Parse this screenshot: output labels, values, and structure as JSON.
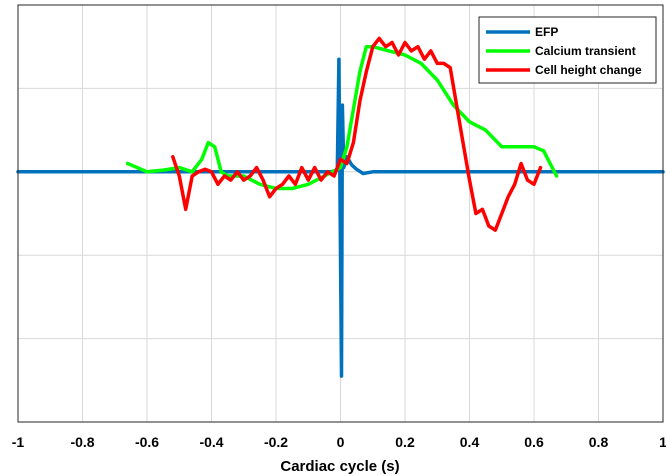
{
  "chart_data": {
    "type": "line",
    "title": "",
    "xlabel": "Cardiac cycle (s)",
    "ylabel": "",
    "xlim": [
      -1,
      1
    ],
    "ylim": [
      -3,
      2
    ],
    "grid": true,
    "legend_position": "top-right",
    "x_ticks": [
      -1,
      -0.8,
      -0.6,
      -0.4,
      -0.2,
      0,
      0.2,
      0.4,
      0.6,
      0.8,
      1
    ],
    "x_tick_labels": [
      "-1",
      "-0.8",
      "-0.6",
      "-0.4",
      "-0.2",
      "0",
      "0.2",
      "0.4",
      "0.6",
      "0.8",
      "1"
    ],
    "y_ticks": [
      -3,
      -2,
      -1,
      0,
      1,
      2
    ],
    "series": [
      {
        "name": "EFP",
        "color": "#0072BD",
        "x": [
          -1,
          -0.6,
          -0.2,
          -0.03,
          -0.01,
          -0.005,
          0,
          0.003,
          0.006,
          0.01,
          0.02,
          0.035,
          0.05,
          0.07,
          0.1,
          0.3,
          0.6,
          1
        ],
        "y": [
          0,
          0,
          0,
          0,
          0.02,
          1.35,
          -1.0,
          -2.45,
          0.8,
          0.05,
          0.18,
          0.08,
          0.03,
          -0.02,
          0,
          0,
          0,
          0
        ]
      },
      {
        "name": "Calcium transient",
        "color": "#00FF00",
        "x": [
          -0.66,
          -0.6,
          -0.55,
          -0.5,
          -0.46,
          -0.43,
          -0.41,
          -0.39,
          -0.37,
          -0.35,
          -0.3,
          -0.25,
          -0.2,
          -0.15,
          -0.1,
          -0.05,
          0,
          0.02,
          0.04,
          0.06,
          0.08,
          0.1,
          0.15,
          0.2,
          0.25,
          0.3,
          0.35,
          0.4,
          0.45,
          0.5,
          0.55,
          0.6,
          0.63,
          0.65,
          0.67
        ],
        "y": [
          0.1,
          0.0,
          0.02,
          0.05,
          0.0,
          0.15,
          0.35,
          0.3,
          0.0,
          -0.05,
          -0.05,
          -0.15,
          -0.2,
          -0.2,
          -0.15,
          -0.05,
          0.05,
          0.3,
          0.75,
          1.2,
          1.5,
          1.5,
          1.45,
          1.4,
          1.3,
          1.1,
          0.8,
          0.6,
          0.5,
          0.3,
          0.3,
          0.3,
          0.25,
          0.1,
          -0.05
        ]
      },
      {
        "name": "Cell height change",
        "color": "#FF0000",
        "x": [
          -0.52,
          -0.5,
          -0.48,
          -0.46,
          -0.44,
          -0.42,
          -0.4,
          -0.38,
          -0.36,
          -0.34,
          -0.32,
          -0.3,
          -0.28,
          -0.26,
          -0.24,
          -0.22,
          -0.2,
          -0.18,
          -0.16,
          -0.14,
          -0.12,
          -0.1,
          -0.08,
          -0.06,
          -0.04,
          -0.02,
          0,
          0.02,
          0.04,
          0.06,
          0.08,
          0.1,
          0.12,
          0.14,
          0.16,
          0.18,
          0.2,
          0.22,
          0.24,
          0.26,
          0.28,
          0.3,
          0.32,
          0.34,
          0.36,
          0.38,
          0.4,
          0.42,
          0.44,
          0.46,
          0.48,
          0.5,
          0.52,
          0.54,
          0.56,
          0.58,
          0.6,
          0.62
        ],
        "y": [
          0.18,
          -0.05,
          -0.45,
          -0.05,
          0.0,
          0.03,
          0.0,
          -0.15,
          -0.05,
          -0.1,
          0.0,
          -0.1,
          -0.05,
          0.05,
          -0.1,
          -0.3,
          -0.2,
          -0.15,
          -0.05,
          -0.15,
          0.05,
          -0.1,
          0.05,
          -0.1,
          0.0,
          -0.05,
          0.15,
          0.1,
          0.35,
          0.85,
          1.2,
          1.5,
          1.6,
          1.5,
          1.55,
          1.4,
          1.55,
          1.45,
          1.5,
          1.35,
          1.45,
          1.3,
          1.3,
          1.25,
          0.8,
          0.35,
          -0.1,
          -0.5,
          -0.45,
          -0.65,
          -0.7,
          -0.5,
          -0.3,
          -0.15,
          0.1,
          -0.1,
          -0.15,
          0.05
        ]
      }
    ]
  }
}
